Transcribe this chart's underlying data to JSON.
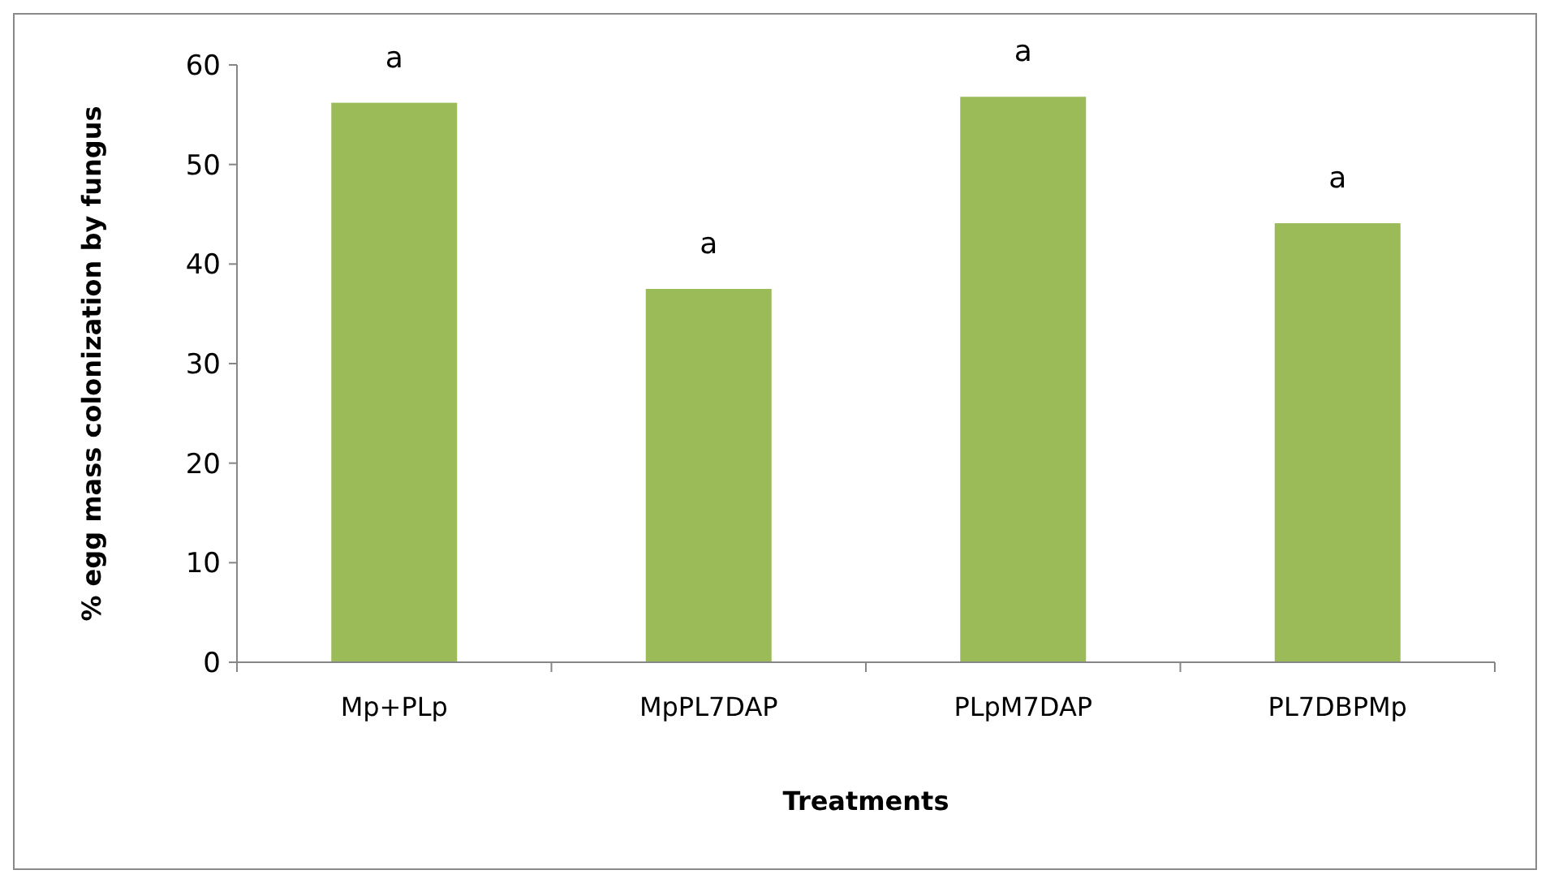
{
  "chart_data": {
    "type": "bar",
    "xlabel": "Treatments",
    "ylabel": "% egg mass colonization by fungus",
    "categories": [
      "Mp+PLp",
      "MpPL7DAP",
      "PLpM7DAP",
      "PL7DBPMp"
    ],
    "values": [
      56.2,
      37.5,
      56.8,
      44.1
    ],
    "color": "#9bbb59",
    "ylim": [
      0,
      60
    ],
    "yticks": [
      0,
      10,
      20,
      30,
      40,
      50,
      60
    ],
    "grid": false,
    "annotations": [
      "a",
      "a",
      "a",
      "a"
    ]
  }
}
